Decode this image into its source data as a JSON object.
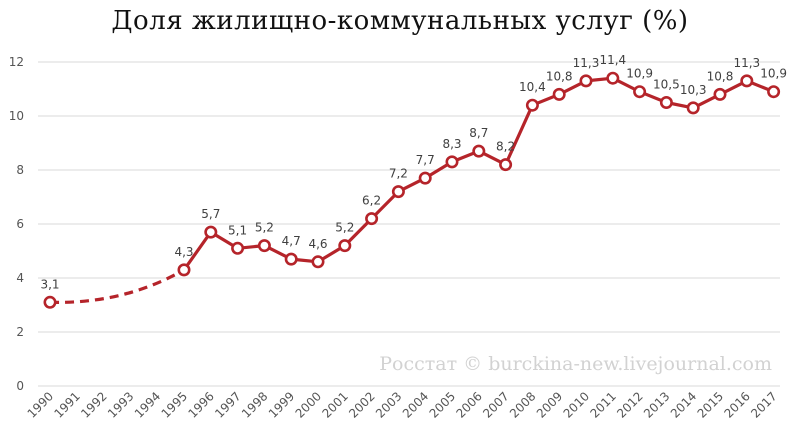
{
  "chart_data": {
    "type": "line",
    "title": "Доля жилищно-коммунальных услуг (%)",
    "xlabel": "",
    "ylabel": "",
    "ylim": [
      0,
      12
    ],
    "yticks": [
      0,
      2,
      4,
      6,
      8,
      10,
      12
    ],
    "grid": "horizontal",
    "legend": "none",
    "categories": [
      "1990",
      "1991",
      "1992",
      "1993",
      "1994",
      "1995",
      "1996",
      "1997",
      "1998",
      "1999",
      "2000",
      "2001",
      "2002",
      "2003",
      "2004",
      "2005",
      "2006",
      "2007",
      "2008",
      "2009",
      "2010",
      "2011",
      "2012",
      "2013",
      "2014",
      "2015",
      "2016",
      "2017"
    ],
    "series": [
      {
        "color": "#b5242a",
        "values": [
          3.1,
          null,
          null,
          null,
          null,
          4.3,
          5.7,
          5.1,
          5.2,
          4.7,
          4.6,
          5.2,
          6.2,
          7.2,
          7.7,
          8.3,
          8.7,
          8.2,
          10.4,
          10.8,
          11.3,
          11.4,
          10.9,
          10.5,
          10.3,
          10.8,
          11.3,
          10.9
        ],
        "labels": [
          "3,1",
          "",
          "",
          "",
          "",
          "4,3",
          "5,7",
          "5,1",
          "5,2",
          "4,7",
          "4,6",
          "5,2",
          "6,2",
          "7,2",
          "7,7",
          "8,3",
          "8,7",
          "8,2",
          "10,4",
          "10,8",
          "11,3",
          "11,4",
          "10,9",
          "10,5",
          "10,3",
          "10,8",
          "11,3",
          "10,9"
        ]
      }
    ],
    "gap_style": "dashed curve between 1990 and 1995"
  },
  "watermark": "Росстат © burckina-new.livejournal.com",
  "colors": {
    "line": "#b5242a",
    "marker_fill": "#ffffff",
    "grid": "#d9d9d9",
    "axis_text": "#555555",
    "watermark": "#d2d2d2"
  }
}
